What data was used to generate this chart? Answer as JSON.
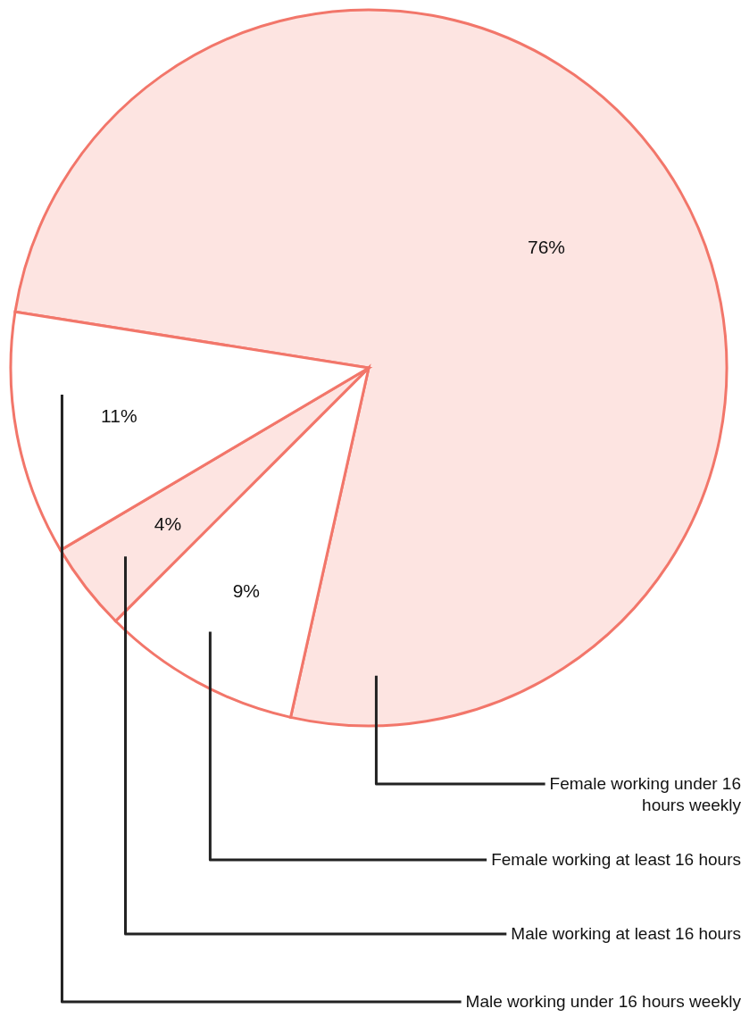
{
  "chart_data": {
    "type": "pie",
    "categories": [
      "Female working under 16 hours weekly",
      "Female working at least 16 hours",
      "Male working at least 16 hours",
      "Male working under 16 hours weekly"
    ],
    "values": [
      76,
      9,
      4,
      11
    ],
    "value_labels": [
      "76%",
      "9%",
      "4%",
      "11%"
    ],
    "colors": [
      "#fde4e1",
      "#ffffff",
      "#fde4e1",
      "#ffffff"
    ],
    "legend": false
  }
}
